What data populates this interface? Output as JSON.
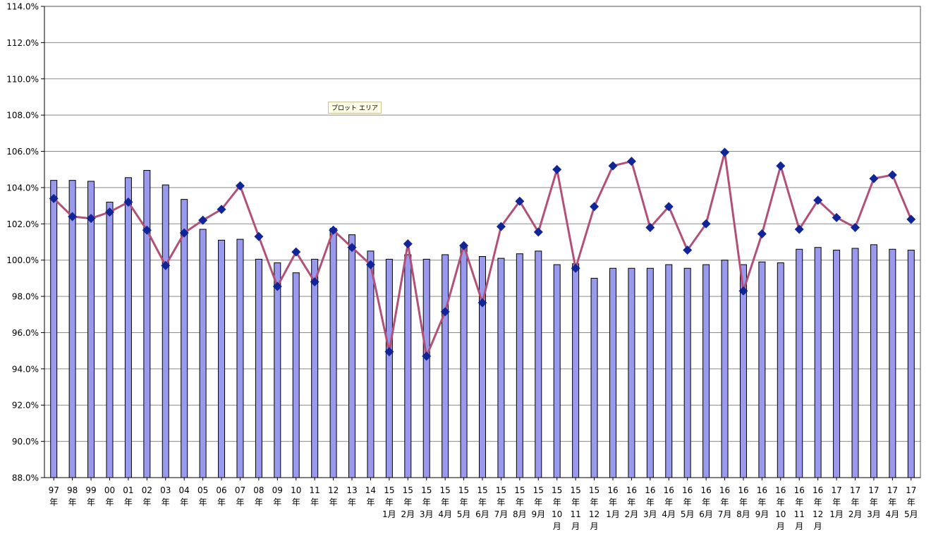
{
  "tooltip": "プロット エリア",
  "chart_data": {
    "type": "bar",
    "title": "",
    "xlabel": "",
    "ylabel": "",
    "ylim": [
      88.0,
      114.0
    ],
    "y_ticks": [
      "88.0%",
      "90.0%",
      "92.0%",
      "94.0%",
      "96.0%",
      "98.0%",
      "100.0%",
      "102.0%",
      "104.0%",
      "106.0%",
      "108.0%",
      "110.0%",
      "112.0%",
      "114.0%"
    ],
    "grid": true,
    "categories": [
      [
        "97",
        "年"
      ],
      [
        "98",
        "年"
      ],
      [
        "99",
        "年"
      ],
      [
        "00",
        "年"
      ],
      [
        "01",
        "年"
      ],
      [
        "02",
        "年"
      ],
      [
        "03",
        "年"
      ],
      [
        "04",
        "年"
      ],
      [
        "05",
        "年"
      ],
      [
        "06",
        "年"
      ],
      [
        "07",
        "年"
      ],
      [
        "08",
        "年"
      ],
      [
        "09",
        "年"
      ],
      [
        "10",
        "年"
      ],
      [
        "11",
        "年"
      ],
      [
        "12",
        "年"
      ],
      [
        "13",
        "年"
      ],
      [
        "14",
        "年"
      ],
      [
        "15",
        "年",
        "1月"
      ],
      [
        "15",
        "年",
        "2月"
      ],
      [
        "15",
        "年",
        "3月"
      ],
      [
        "15",
        "年",
        "4月"
      ],
      [
        "15",
        "年",
        "5月"
      ],
      [
        "15",
        "年",
        "6月"
      ],
      [
        "15",
        "年",
        "7月"
      ],
      [
        "15",
        "年",
        "8月"
      ],
      [
        "15",
        "年",
        "9月"
      ],
      [
        "15",
        "年",
        "10",
        "月"
      ],
      [
        "15",
        "年",
        "11",
        "月"
      ],
      [
        "15",
        "年",
        "12",
        "月"
      ],
      [
        "16",
        "年",
        "1月"
      ],
      [
        "16",
        "年",
        "2月"
      ],
      [
        "16",
        "年",
        "3月"
      ],
      [
        "16",
        "年",
        "4月"
      ],
      [
        "16",
        "年",
        "5月"
      ],
      [
        "16",
        "年",
        "6月"
      ],
      [
        "16",
        "年",
        "7月"
      ],
      [
        "16",
        "年",
        "8月"
      ],
      [
        "16",
        "年",
        "9月"
      ],
      [
        "16",
        "年",
        "10",
        "月"
      ],
      [
        "16",
        "年",
        "11",
        "月"
      ],
      [
        "16",
        "年",
        "12",
        "月"
      ],
      [
        "17",
        "年",
        "1月"
      ],
      [
        "17",
        "年",
        "2月"
      ],
      [
        "17",
        "年",
        "3月"
      ],
      [
        "17",
        "年",
        "4月"
      ],
      [
        "17",
        "年",
        "5月"
      ]
    ],
    "series": [
      {
        "type": "bar",
        "color": "#9999ee",
        "values": [
          104.4,
          104.4,
          104.35,
          103.2,
          104.55,
          104.95,
          104.15,
          103.35,
          101.7,
          101.1,
          101.15,
          100.05,
          99.85,
          99.3,
          100.05,
          101.75,
          101.4,
          100.5,
          100.05,
          100.3,
          100.05,
          100.3,
          100.8,
          100.2,
          100.1,
          100.35,
          100.5,
          99.75,
          99.8,
          99.0,
          99.55,
          99.55,
          99.55,
          99.75,
          99.55,
          99.75,
          100.0,
          99.75,
          99.9,
          99.85,
          100.6,
          100.7,
          100.55,
          100.65,
          100.85,
          100.6,
          100.55
        ]
      },
      {
        "type": "line",
        "color": "#b25077",
        "marker_color": "#10259a",
        "values": [
          103.4,
          102.4,
          102.3,
          102.65,
          103.2,
          101.65,
          99.7,
          101.5,
          102.2,
          102.8,
          104.1,
          101.3,
          98.55,
          100.45,
          98.8,
          101.65,
          100.7,
          99.75,
          94.95,
          100.9,
          94.7,
          97.15,
          100.8,
          97.65,
          101.85,
          103.25,
          101.55,
          105.0,
          99.55,
          102.95,
          105.2,
          105.45,
          101.8,
          102.95,
          100.55,
          102.0,
          105.95,
          98.3,
          101.45,
          105.2,
          101.7,
          103.3,
          102.35,
          101.8,
          104.5,
          104.7,
          102.25
        ]
      }
    ]
  }
}
